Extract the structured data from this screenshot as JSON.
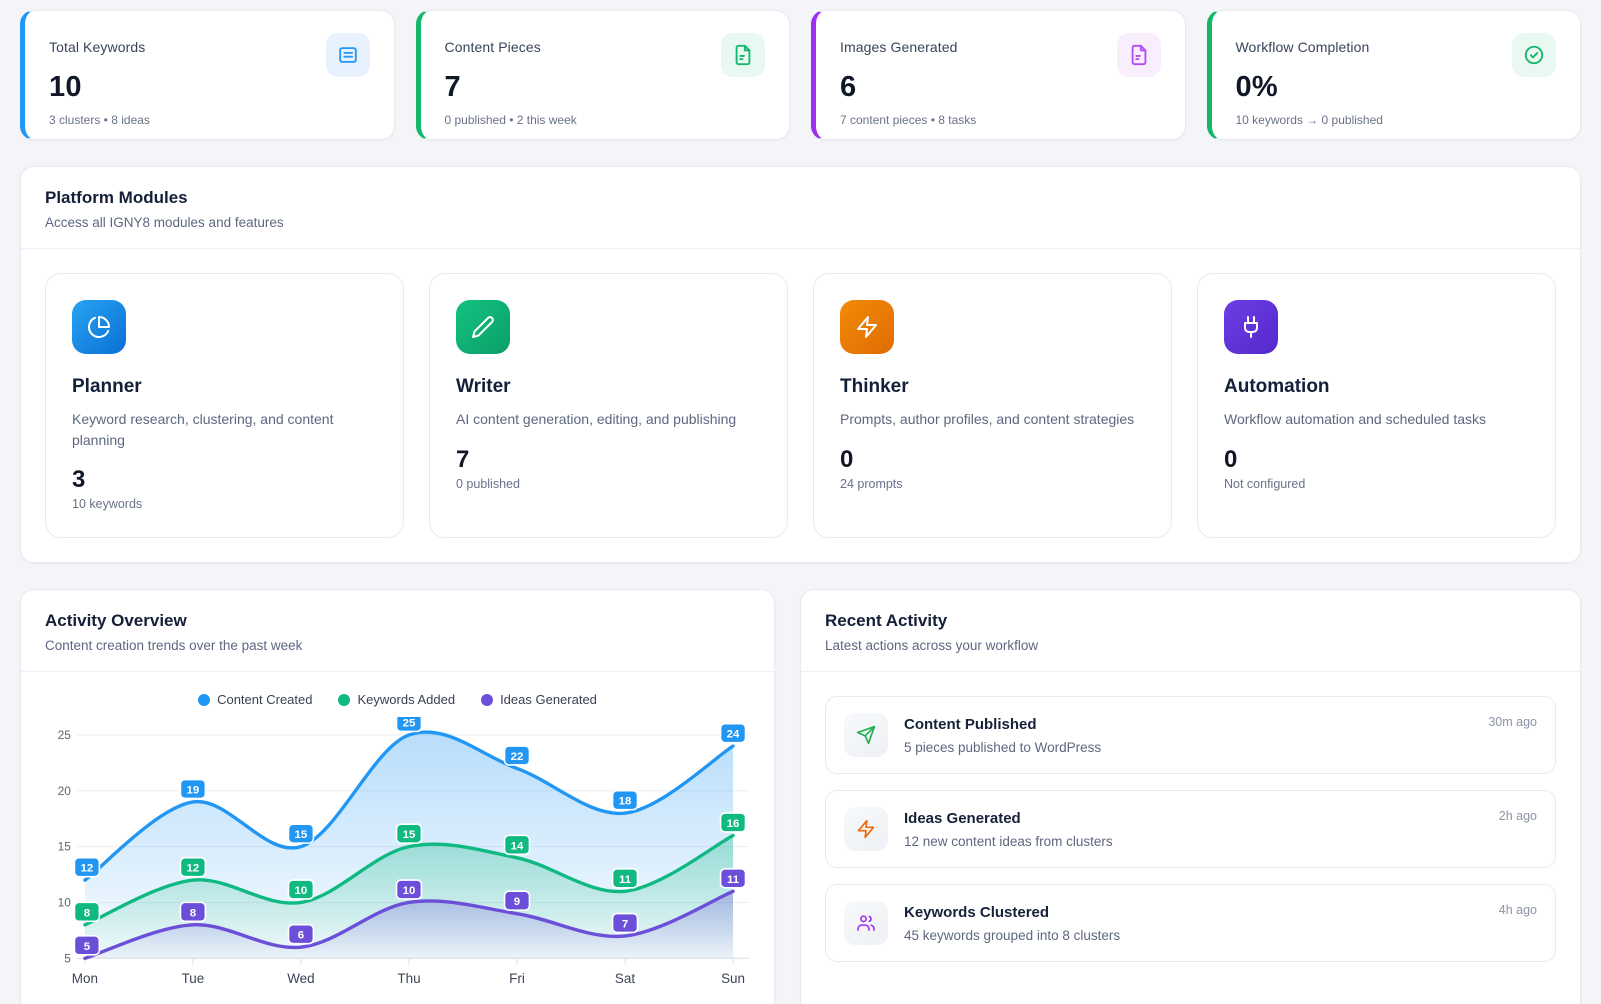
{
  "stats": [
    {
      "label": "Total Keywords",
      "value": "10",
      "sub": "3 clusters • 8 ideas",
      "icon": "list-icon",
      "accent": "#2196f3",
      "icon_bg": "#e8f2fe",
      "icon_color": "#2196f3"
    },
    {
      "label": "Content Pieces",
      "value": "7",
      "sub": "0 published • 2 this week",
      "icon": "file-text-icon",
      "accent": "#12b76a",
      "icon_bg": "#e9f9f1",
      "icon_color": "#12b76a"
    },
    {
      "label": "Images Generated",
      "value": "6",
      "sub": "7 content pieces • 8 tasks",
      "icon": "file-image-icon",
      "accent": "#9b2ff2",
      "icon_bg": "#f8eefe",
      "icon_color": "#b44af2"
    },
    {
      "label": "Workflow Completion",
      "value": "0%",
      "sub": "10 keywords → 0 published",
      "icon": "check-circle-icon",
      "accent": "#12b76a",
      "icon_bg": "#e9f9f1",
      "icon_color": "#12b76a"
    }
  ],
  "modules": {
    "title": "Platform Modules",
    "subtitle": "Access all IGNY8 modules and features",
    "items": [
      {
        "name": "Planner",
        "desc": "Keyword research, clustering, and content planning",
        "value": "3",
        "sub": "10 keywords",
        "icon": "pie-chart-icon",
        "grad": [
          "#27a4f2",
          "#0b6fd4"
        ]
      },
      {
        "name": "Writer",
        "desc": "AI content generation, editing, and publishing",
        "value": "7",
        "sub": "0 published",
        "icon": "pencil-icon",
        "grad": [
          "#14c181",
          "#0a9f66"
        ]
      },
      {
        "name": "Thinker",
        "desc": "Prompts, author profiles, and content strategies",
        "value": "0",
        "sub": "24 prompts",
        "icon": "zap-icon",
        "grad": [
          "#f18b07",
          "#e06c03"
        ]
      },
      {
        "name": "Automation",
        "desc": "Workflow automation and scheduled tasks",
        "value": "0",
        "sub": "Not configured",
        "icon": "plug-icon",
        "grad": [
          "#6b3fe4",
          "#5528cc"
        ]
      }
    ]
  },
  "activity_overview": {
    "title": "Activity Overview",
    "subtitle": "Content creation trends over the past week"
  },
  "chart_data": {
    "type": "line",
    "x": [
      "Mon",
      "Tue",
      "Wed",
      "Thu",
      "Fri",
      "Sat",
      "Sun"
    ],
    "series": [
      {
        "name": "Content Created",
        "color": "#2196f3",
        "values": [
          12,
          19,
          15,
          25,
          22,
          18,
          24
        ]
      },
      {
        "name": "Keywords Added",
        "color": "#10b981",
        "values": [
          8,
          12,
          10,
          15,
          14,
          11,
          16
        ]
      },
      {
        "name": "Ideas Generated",
        "color": "#6c4fd8",
        "values": [
          5,
          8,
          6,
          10,
          9,
          7,
          11
        ]
      }
    ],
    "ylim": [
      5,
      25
    ],
    "yticks": [
      5,
      10,
      15,
      20,
      25
    ],
    "grid": true,
    "legend_position": "top",
    "point_labels": true,
    "fill": "gradient-area"
  },
  "recent": {
    "title": "Recent Activity",
    "subtitle": "Latest actions across your workflow",
    "items": [
      {
        "title": "Content Published",
        "desc": "5 pieces published to WordPress",
        "time": "30m ago",
        "icon": "send-icon",
        "color": "#1fae53"
      },
      {
        "title": "Ideas Generated",
        "desc": "12 new content ideas from clusters",
        "time": "2h ago",
        "icon": "zap-icon",
        "color": "#ee6a0c"
      },
      {
        "title": "Keywords Clustered",
        "desc": "45 keywords grouped into 8 clusters",
        "time": "4h ago",
        "icon": "users-icon",
        "color": "#a335ee"
      }
    ]
  }
}
